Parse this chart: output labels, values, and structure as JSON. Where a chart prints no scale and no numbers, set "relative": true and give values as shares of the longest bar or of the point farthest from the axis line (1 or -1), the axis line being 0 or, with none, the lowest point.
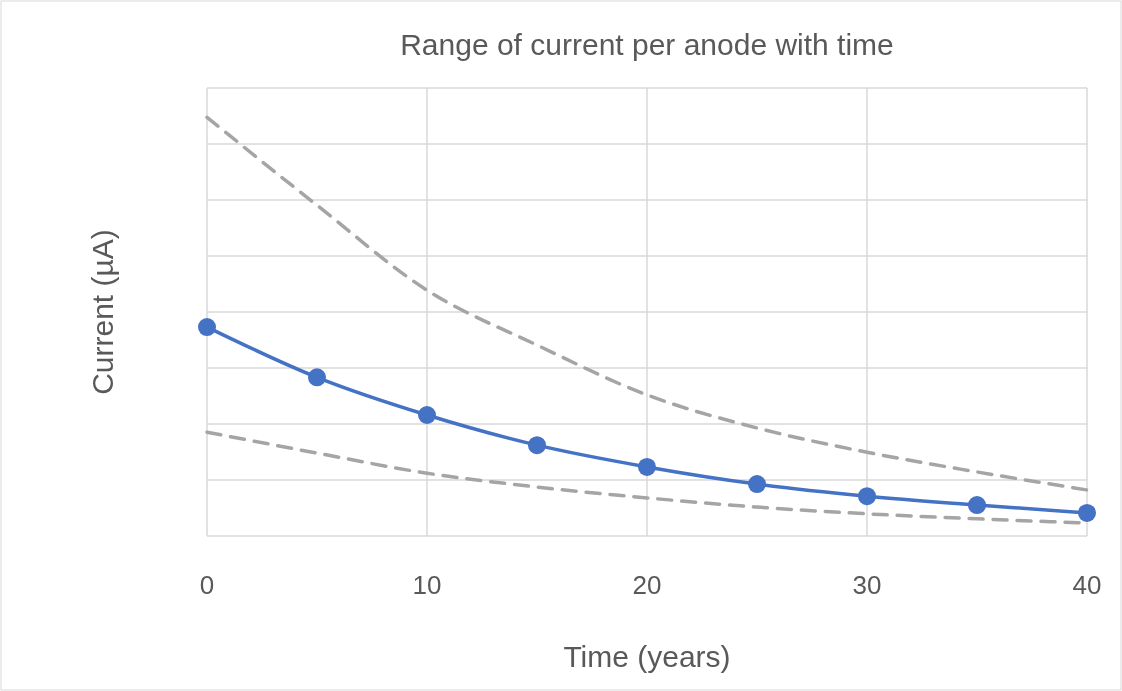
{
  "chart_data": {
    "type": "line",
    "title": "Range of current per anode with time",
    "xlabel": "Time (years)",
    "ylabel": "Current  (µA)",
    "relative": true,
    "x": [
      0,
      5,
      10,
      15,
      20,
      25,
      30,
      35,
      40
    ],
    "xlim": [
      0,
      40
    ],
    "xticks": [
      0,
      10,
      20,
      30,
      40
    ],
    "grid": true,
    "series": [
      {
        "color": "#4472c4",
        "marker": "circle",
        "line_style": "solid",
        "values": [
          0.499,
          0.379,
          0.289,
          0.217,
          0.165,
          0.124,
          0.095,
          0.074,
          0.055
        ]
      },
      {
        "color": "#a5a5a5",
        "marker": "none",
        "line_style": "dashed",
        "values": [
          1,
          0.79,
          0.587,
          0.456,
          0.337,
          0.258,
          0.2,
          0.153,
          0.11
        ]
      },
      {
        "color": "#a5a5a5",
        "marker": "none",
        "line_style": "dashed",
        "values": [
          0.248,
          0.198,
          0.15,
          0.117,
          0.091,
          0.069,
          0.053,
          0.041,
          0.031
        ]
      }
    ]
  }
}
